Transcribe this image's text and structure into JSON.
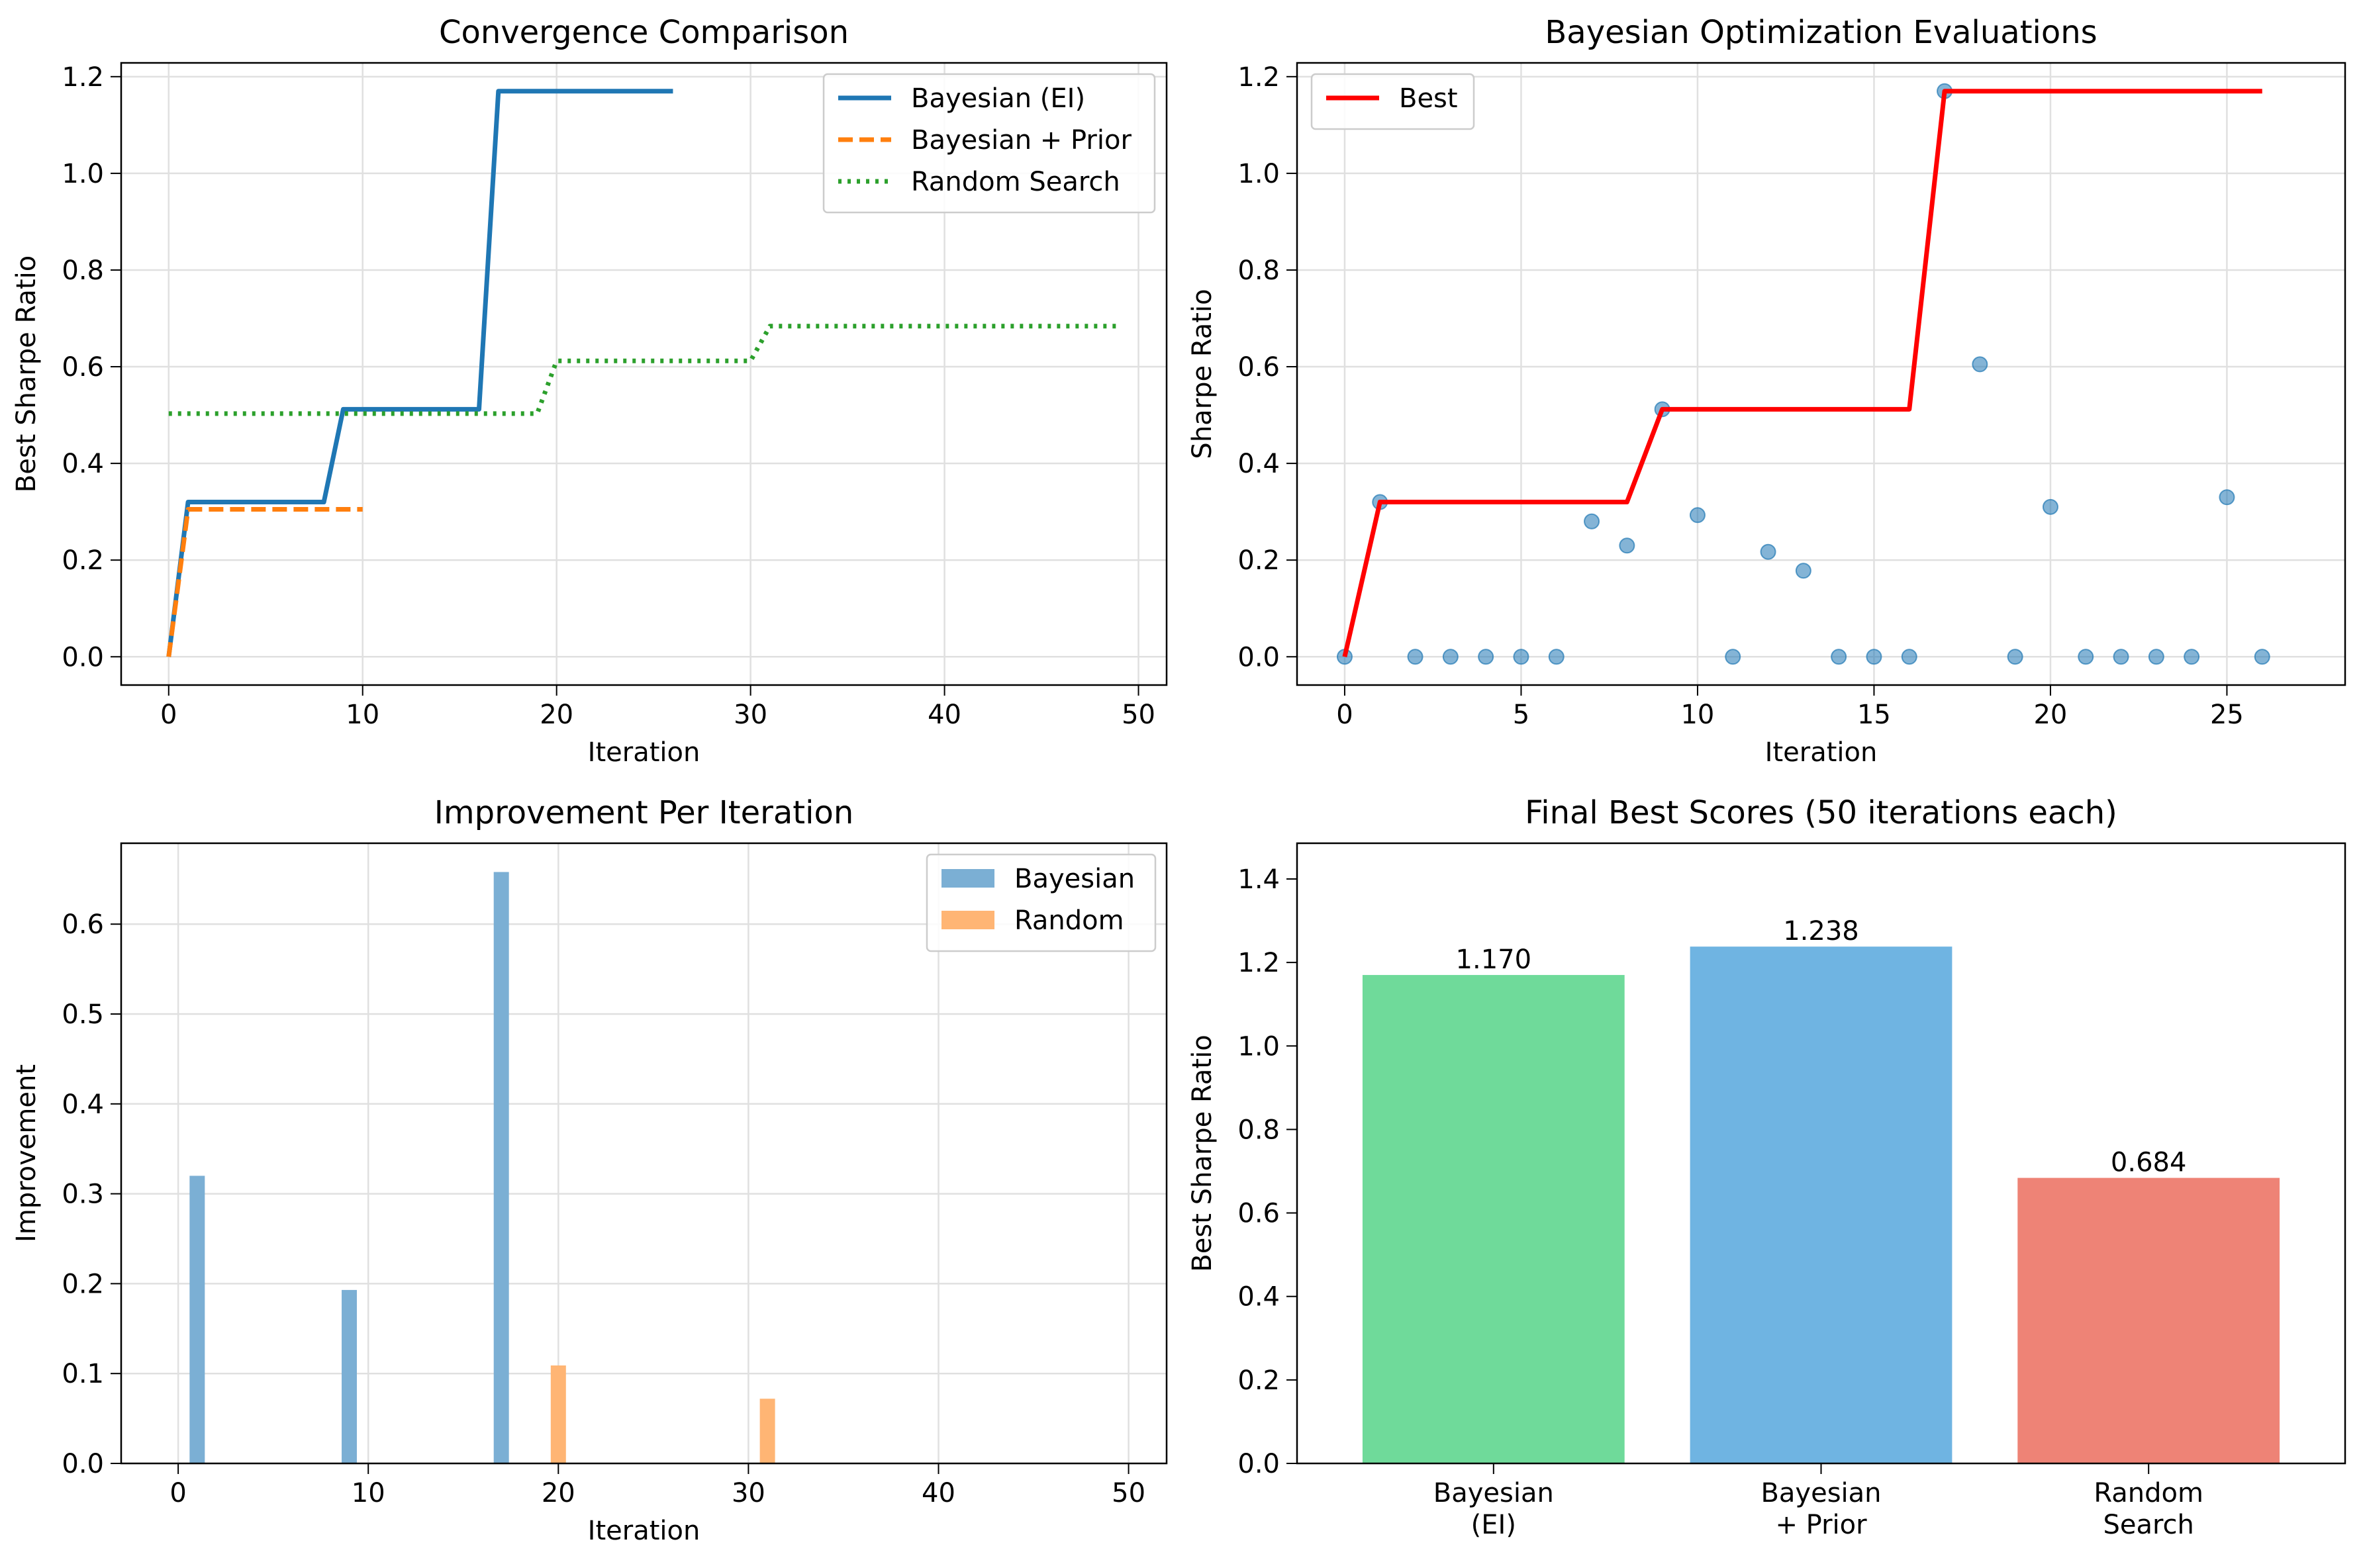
{
  "chart_data": [
    {
      "type": "line",
      "title": "Convergence Comparison",
      "xlabel": "Iteration",
      "ylabel": "Best Sharpe Ratio",
      "xlim": [
        -2.45,
        51.45
      ],
      "ylim": [
        -0.0585,
        1.2285
      ],
      "xticks": [
        0,
        10,
        20,
        30,
        40,
        50
      ],
      "yticks": [
        0.0,
        0.2,
        0.4,
        0.6,
        0.8,
        1.0,
        1.2
      ],
      "grid": true,
      "legend_position": "top-right",
      "series": [
        {
          "name": "Bayesian (EI)",
          "color": "#1f77b4",
          "dash": "solid",
          "x": [
            0,
            1,
            2,
            3,
            4,
            5,
            6,
            7,
            8,
            9,
            10,
            11,
            12,
            13,
            14,
            15,
            16,
            17,
            18,
            19,
            20,
            21,
            22,
            23,
            24,
            25,
            26
          ],
          "values": [
            0,
            0.32,
            0.32,
            0.32,
            0.32,
            0.32,
            0.32,
            0.32,
            0.32,
            0.512,
            0.512,
            0.512,
            0.512,
            0.512,
            0.512,
            0.512,
            0.512,
            1.17,
            1.17,
            1.17,
            1.17,
            1.17,
            1.17,
            1.17,
            1.17,
            1.17,
            1.17
          ]
        },
        {
          "name": "Bayesian + Prior",
          "color": "#ff7f0e",
          "dash": "dashed",
          "x": [
            0,
            1,
            2,
            3,
            4,
            5,
            6,
            7,
            8,
            9,
            10
          ],
          "values": [
            0,
            0.305,
            0.305,
            0.305,
            0.305,
            0.305,
            0.305,
            0.305,
            0.305,
            0.305,
            0.305
          ]
        },
        {
          "name": "Random Search",
          "color": "#2ca02c",
          "dash": "dotted",
          "x": [
            0,
            19,
            20,
            30,
            31,
            49
          ],
          "values": [
            0.503,
            0.503,
            0.612,
            0.612,
            0.684,
            0.684
          ]
        }
      ]
    },
    {
      "type": "scatter",
      "title": "Bayesian Optimization Evaluations",
      "xlabel": "Iteration",
      "ylabel": "Sharpe Ratio",
      "xlim": [
        -1.35,
        28.35
      ],
      "ylim": [
        -0.0585,
        1.2285
      ],
      "xticks": [
        0,
        5,
        10,
        15,
        20,
        25
      ],
      "yticks": [
        0.0,
        0.2,
        0.4,
        0.6,
        0.8,
        1.0,
        1.2
      ],
      "grid": true,
      "legend_position": "top-left",
      "points": {
        "color": "#1f77b4",
        "x": [
          0,
          1,
          2,
          3,
          4,
          5,
          6,
          7,
          8,
          9,
          10,
          11,
          12,
          13,
          14,
          15,
          16,
          17,
          18,
          19,
          20,
          21,
          22,
          23,
          24,
          25,
          26
        ],
        "values": [
          0,
          0.32,
          0,
          0,
          0,
          0,
          0,
          0.28,
          0.23,
          0.512,
          0.293,
          0,
          0.217,
          0.178,
          0,
          0,
          0,
          1.17,
          0.605,
          0,
          0.31,
          0,
          0,
          0,
          0,
          0.33,
          0
        ]
      },
      "series": [
        {
          "name": "Best",
          "color": "#ff0000",
          "x": [
            0,
            1,
            2,
            3,
            4,
            5,
            6,
            7,
            8,
            9,
            10,
            11,
            12,
            13,
            14,
            15,
            16,
            17,
            18,
            19,
            20,
            21,
            22,
            23,
            24,
            25,
            26
          ],
          "values": [
            0,
            0.32,
            0.32,
            0.32,
            0.32,
            0.32,
            0.32,
            0.32,
            0.32,
            0.512,
            0.512,
            0.512,
            0.512,
            0.512,
            0.512,
            0.512,
            0.512,
            1.17,
            1.17,
            1.17,
            1.17,
            1.17,
            1.17,
            1.17,
            1.17,
            1.17,
            1.17
          ]
        }
      ]
    },
    {
      "type": "bar",
      "title": "Improvement Per Iteration",
      "xlabel": "Iteration",
      "ylabel": "Improvement",
      "xlim": [
        -3,
        52
      ],
      "ylim": [
        0,
        0.69
      ],
      "xticks": [
        0,
        10,
        20,
        30,
        40,
        50
      ],
      "yticks": [
        0.0,
        0.1,
        0.2,
        0.3,
        0.4,
        0.5,
        0.6
      ],
      "grid": true,
      "legend_position": "top-right",
      "bar_width": 0.8,
      "series": [
        {
          "name": "Bayesian",
          "color": "#7bafd4",
          "x": [
            1,
            9,
            17
          ],
          "values": [
            0.32,
            0.193,
            0.658
          ]
        },
        {
          "name": "Random",
          "color": "#ffb574",
          "x": [
            20,
            31
          ],
          "values": [
            0.109,
            0.072
          ]
        }
      ]
    },
    {
      "type": "bar",
      "title": "Final Best Scores (50 iterations each)",
      "xlabel": "",
      "ylabel": "Best Sharpe Ratio",
      "categories": [
        [
          "Bayesian",
          "(EI)"
        ],
        [
          "Bayesian",
          "+ Prior"
        ],
        [
          "Random",
          "Search"
        ]
      ],
      "values": [
        1.17,
        1.238,
        0.684
      ],
      "value_labels": [
        "1.170",
        "1.238",
        "0.684"
      ],
      "colors": [
        "#6fda9a",
        "#6fb4e2",
        "#ee8376"
      ],
      "xlim": [
        -0.6,
        2.6
      ],
      "ylim": [
        0,
        1.4856
      ],
      "yticks": [
        0.0,
        0.2,
        0.4,
        0.6,
        0.8,
        1.0,
        1.2,
        1.4
      ],
      "grid": false
    }
  ]
}
